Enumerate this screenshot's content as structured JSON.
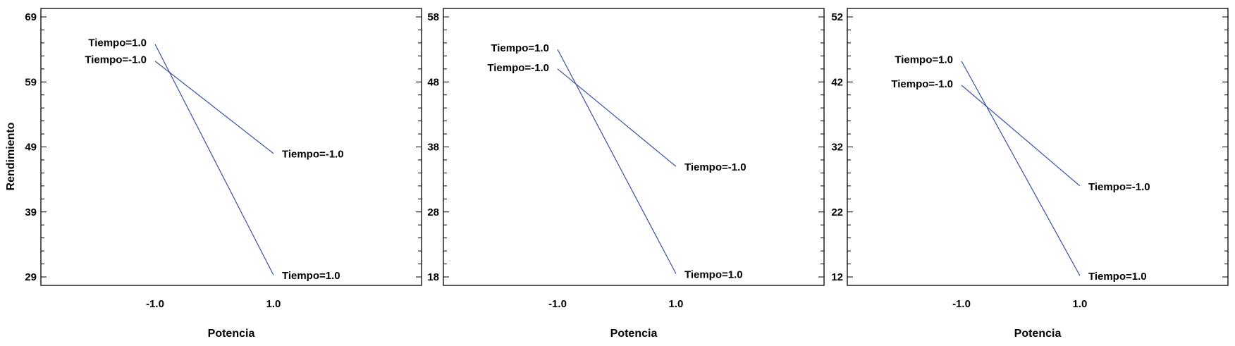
{
  "chart_data": [
    {
      "type": "line",
      "xlabel": "Potencia",
      "ylabel": "Rendimiento",
      "x": [
        -1.0,
        1.0
      ],
      "x_tick_labels": [
        "-1.0",
        "1.0"
      ],
      "ylim": [
        29,
        69
      ],
      "y_ticks": [
        29,
        39,
        49,
        59,
        69
      ],
      "grid": false,
      "series": [
        {
          "name": "Tiempo=1.0",
          "values": [
            64.8,
            29.3
          ],
          "color": "#3a4fa8"
        },
        {
          "name": "Tiempo=-1.0",
          "values": [
            62.2,
            48.0
          ],
          "color": "#3a4fa8"
        }
      ]
    },
    {
      "type": "line",
      "xlabel": "Potencia",
      "ylabel": "",
      "x": [
        -1.0,
        1.0
      ],
      "x_tick_labels": [
        "-1.0",
        "1.0"
      ],
      "ylim": [
        18,
        58
      ],
      "y_ticks": [
        18,
        28,
        38,
        48,
        58
      ],
      "grid": false,
      "series": [
        {
          "name": "Tiempo=1.0",
          "values": [
            53.0,
            18.5
          ],
          "color": "#3a4fa8"
        },
        {
          "name": "Tiempo=-1.0",
          "values": [
            50.0,
            35.0
          ],
          "color": "#3a4fa8"
        }
      ]
    },
    {
      "type": "line",
      "xlabel": "Potencia",
      "ylabel": "",
      "x": [
        -1.0,
        1.0
      ],
      "x_tick_labels": [
        "-1.0",
        "1.0"
      ],
      "ylim": [
        12,
        52
      ],
      "y_ticks": [
        12,
        22,
        32,
        42,
        52
      ],
      "grid": false,
      "series": [
        {
          "name": "Tiempo=1.0",
          "values": [
            45.2,
            12.2
          ],
          "color": "#3a4fa8"
        },
        {
          "name": "Tiempo=-1.0",
          "values": [
            41.5,
            26.0
          ],
          "color": "#3a4fa8"
        }
      ]
    }
  ]
}
